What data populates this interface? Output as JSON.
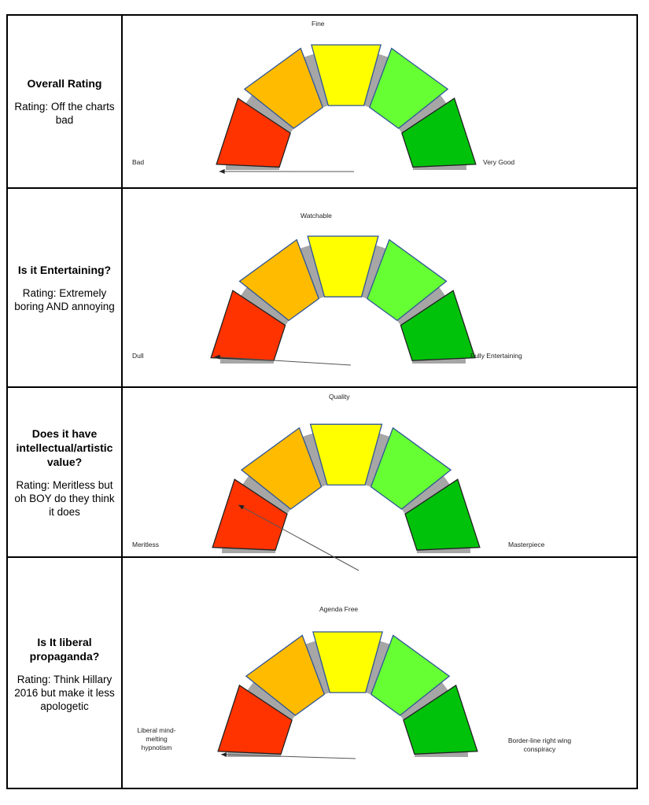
{
  "colors": {
    "red": "#ff3300",
    "orange": "#ffbb00",
    "yellow": "#ffff00",
    "lightgreen": "#66ff33",
    "green": "#00c20a",
    "track": "#a6a6a6",
    "stroke": "#2f5597",
    "arrow": "#555555"
  },
  "chart_data": [
    {
      "type": "gauge",
      "question": "Overall Rating",
      "rating": "Rating: Off the charts bad",
      "segments": [
        "red",
        "orange",
        "yellow",
        "lightgreen",
        "green"
      ],
      "labels": {
        "low": "Bad",
        "mid": "Fine",
        "high": "Very Good"
      },
      "needle_fraction": 0.02
    },
    {
      "type": "gauge",
      "question": "Is it Entertaining?",
      "rating": "Rating: Extremely boring AND annoying",
      "segments": [
        "red",
        "orange",
        "yellow",
        "lightgreen",
        "green"
      ],
      "labels": {
        "low": "Dull",
        "mid": "Watchable",
        "high": "Fully Entertaining"
      },
      "needle_fraction": 0.04
    },
    {
      "type": "gauge",
      "question": "Does it have intellectual/artistic value?",
      "rating": "Rating: Meritless but oh BOY do they think it does",
      "segments": [
        "red",
        "orange",
        "yellow",
        "lightgreen",
        "green"
      ],
      "labels": {
        "low": "Meritless",
        "mid": "Quality",
        "high": "Masterpiece"
      },
      "needle_fraction": 0.12
    },
    {
      "type": "gauge",
      "question": "Is It liberal propaganda?",
      "rating": "Rating: Think Hillary 2016 but make it less apologetic",
      "segments": [
        "red",
        "orange",
        "yellow",
        "lightgreen",
        "green"
      ],
      "labels": {
        "low": "Liberal mind-melting hypnotism",
        "mid": "Agenda Free",
        "high": "Border-line right wing conspiracy"
      },
      "needle_fraction": 0.03
    }
  ]
}
